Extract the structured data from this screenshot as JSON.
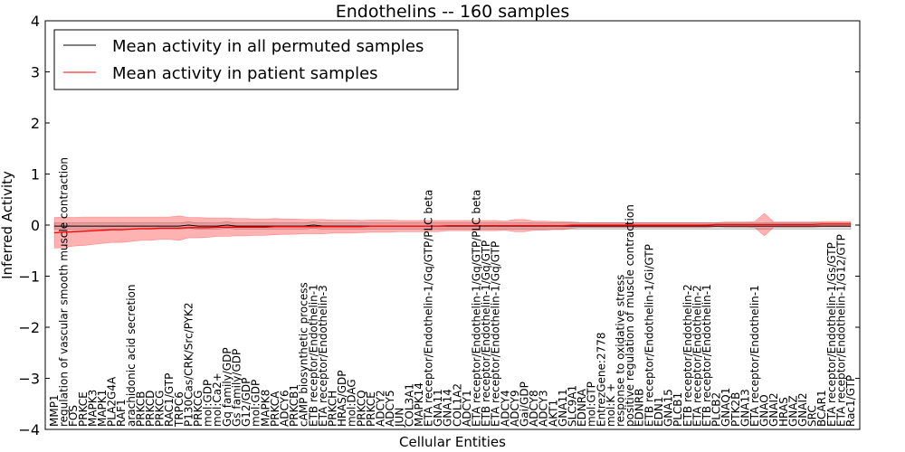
{
  "chart_data": {
    "type": "line",
    "title": "Endothelins -- 160 samples",
    "xlabel": "Cellular Entities",
    "ylabel": "Inferred Activity",
    "ylim": [
      -4,
      4
    ],
    "yticks": [
      "−4",
      "−3",
      "−2",
      "−1",
      "0",
      "1",
      "2",
      "3",
      "4"
    ],
    "legend_position": "upper-left",
    "categories": [
      "MMP1",
      "regulation of vascular smooth muscle contraction",
      "FOS",
      "PRKCE",
      "MAPK3",
      "MAPK1",
      "PLA2G4A",
      "RAF1",
      "arachidonic acid secretion",
      "PRKCB",
      "PRKCD",
      "PRKCG",
      "RAC1/GTP",
      "TRPC6",
      "P130Cas/CRK/Src/PYK2",
      "PRKCG",
      "mol:GDP",
      "mol:Ca2+",
      "Gq family/GDP",
      "Gs family/GDP",
      "G12/GDP",
      "mol:GDP",
      "MAPK8",
      "PRKCA",
      "ADCY6",
      "PRKCB1",
      "cAMP biosynthetic process",
      "ETB receptor/Endothelin-1",
      "ETA receptor/Endothelin-3",
      "PRKCH",
      "HRAS/GDP",
      "mol:DAG",
      "PRKCQ",
      "PRKCE",
      "ADCY2",
      "ADCY5",
      "JUN",
      "COL3A1",
      "MAPK14",
      "ETA receptor/Endothelin-1/Gq/GTP/PLC beta",
      "GNA11",
      "GNA14",
      "COL1A2",
      "ADCY1",
      "ETA receptor/Endothelin-1/Gq/GTP/PLC beta",
      "ETB receptor/Endothelin-1/Gq/GTP",
      "ETA receptor/Endothelin-1/Gq/GTP",
      "ADCY4",
      "ADCY9",
      "Gai/GDP",
      "ADCY8",
      "ADCY3",
      "AKT1",
      "GNA11",
      "SLC9A1",
      "EDNRA",
      "mol:GTP",
      "EntrezGene:2778",
      "mol:K +",
      "response to oxidative stress",
      "positive regulation of muscle contraction",
      "EDNRB",
      "ETB receptor/Endothelin-1/Gi/GTP",
      "EDN1",
      "GNA15",
      "PLCB1",
      "ETB receptor/Endothelin-2",
      "ETA receptor/Endothelin-2",
      "ETB receptor/Endothelin-1",
      "PLCB2",
      "GNAQ1",
      "PTK2B",
      "GNA13",
      "ETA receptor/Endothelin-1",
      "GNAO",
      "GNAI2",
      "HRAS",
      "GNAZ",
      "GNAI2",
      "SRC",
      "BCAR1",
      "ETA receptor/Endothelin-1/Gs/GTP",
      "ETA receptor/Endothelin-1/G12/GTP",
      "Rac1/GTP"
    ],
    "series": [
      {
        "name": "Mean activity in all permuted samples",
        "color": "#000000",
        "values": [
          -0.02,
          -0.02,
          -0.02,
          -0.02,
          -0.02,
          -0.02,
          -0.02,
          -0.02,
          -0.02,
          -0.02,
          -0.02,
          -0.02,
          -0.02,
          -0.02,
          0.0,
          -0.02,
          -0.02,
          -0.02,
          0.0,
          -0.02,
          -0.02,
          -0.02,
          -0.02,
          -0.02,
          -0.02,
          -0.02,
          -0.02,
          0.0,
          -0.02,
          -0.02,
          -0.02,
          -0.02,
          -0.02,
          -0.02,
          -0.02,
          -0.02,
          -0.02,
          -0.02,
          -0.02,
          -0.02,
          -0.02,
          -0.02,
          -0.02,
          -0.02,
          -0.02,
          -0.02,
          -0.02,
          -0.02,
          -0.02,
          -0.02,
          -0.02,
          -0.02,
          -0.02,
          -0.02,
          -0.02,
          -0.02,
          -0.02,
          -0.02,
          -0.02,
          -0.02,
          -0.02,
          -0.02,
          -0.02,
          -0.02,
          -0.02,
          -0.02,
          -0.02,
          -0.02,
          -0.02,
          -0.02,
          -0.02,
          -0.02,
          -0.02,
          -0.02,
          -0.02,
          -0.02,
          -0.02,
          -0.02,
          -0.02,
          -0.02,
          -0.02,
          -0.02,
          -0.02,
          -0.02
        ],
        "spread": 0.06
      },
      {
        "name": "Mean activity in patient samples",
        "color": "#ff0000",
        "values": [
          -0.15,
          -0.14,
          -0.13,
          -0.12,
          -0.11,
          -0.1,
          -0.09,
          -0.09,
          -0.08,
          -0.07,
          -0.07,
          -0.06,
          -0.06,
          -0.06,
          -0.05,
          -0.05,
          -0.05,
          -0.04,
          -0.04,
          -0.04,
          -0.04,
          -0.04,
          -0.04,
          -0.03,
          -0.03,
          -0.03,
          -0.03,
          -0.03,
          -0.03,
          -0.03,
          -0.03,
          -0.03,
          -0.03,
          -0.02,
          -0.02,
          -0.02,
          -0.02,
          -0.02,
          -0.02,
          -0.02,
          -0.02,
          -0.01,
          -0.01,
          -0.01,
          -0.01,
          -0.01,
          -0.01,
          -0.01,
          -0.01,
          -0.01,
          -0.01,
          -0.01,
          -0.01,
          -0.01,
          0.0,
          0.0,
          0.0,
          0.0,
          0.0,
          0.0,
          0.0,
          0.0,
          0.0,
          0.0,
          0.0,
          0.0,
          0.0,
          0.0,
          0.0,
          0.01,
          0.01,
          0.01,
          0.01,
          0.01,
          0.01,
          0.01,
          0.01,
          0.01,
          0.01,
          0.01,
          0.02,
          0.02,
          0.02,
          0.02
        ],
        "spread": [
          0.3,
          0.3,
          0.28,
          0.28,
          0.27,
          0.26,
          0.25,
          0.25,
          0.24,
          0.23,
          0.23,
          0.22,
          0.22,
          0.24,
          0.2,
          0.2,
          0.19,
          0.18,
          0.18,
          0.17,
          0.17,
          0.16,
          0.16,
          0.16,
          0.15,
          0.15,
          0.14,
          0.14,
          0.14,
          0.13,
          0.13,
          0.13,
          0.12,
          0.12,
          0.12,
          0.12,
          0.11,
          0.11,
          0.11,
          0.11,
          0.11,
          0.1,
          0.1,
          0.1,
          0.1,
          0.1,
          0.1,
          0.09,
          0.12,
          0.12,
          0.09,
          0.09,
          0.08,
          0.08,
          0.06,
          0.05,
          0.05,
          0.05,
          0.05,
          0.05,
          0.05,
          0.05,
          0.05,
          0.05,
          0.05,
          0.05,
          0.05,
          0.05,
          0.05,
          0.04,
          0.05,
          0.05,
          0.05,
          0.06,
          0.22,
          0.05,
          0.05,
          0.05,
          0.05,
          0.05,
          0.05,
          0.05,
          0.05,
          0.05
        ]
      }
    ]
  }
}
